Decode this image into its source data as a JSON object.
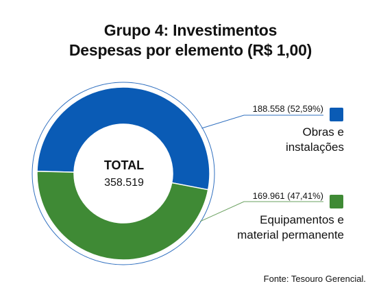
{
  "title_line1": "Grupo 4: Investimentos",
  "title_line2": "Despesas por elemento (R$ 1,00)",
  "total_label": "TOTAL",
  "total_value": "358.519",
  "source": "Fonte: Tesouro Gerencial.",
  "chart_data": {
    "type": "pie",
    "donut": true,
    "title": "Grupo 4: Investimentos",
    "subtitle": "Despesas por elemento (R$ 1,00)",
    "center_text": [
      "TOTAL",
      "358.519"
    ],
    "total": 358519,
    "legend_placement": "right",
    "slices": [
      {
        "name": "Obras e instalações",
        "name_lines": [
          "Obras e",
          "instalações"
        ],
        "value": 188558,
        "label": "188.558 (52,59%)",
        "percent": 52.59,
        "color": "#0a5bb5"
      },
      {
        "name": "Equipamentos e material permanente",
        "name_lines": [
          "Equipamentos e",
          "material permanente"
        ],
        "value": 169961,
        "label": "169.961 (47,41%)",
        "percent": 47.41,
        "color": "#3f8a35"
      }
    ]
  }
}
